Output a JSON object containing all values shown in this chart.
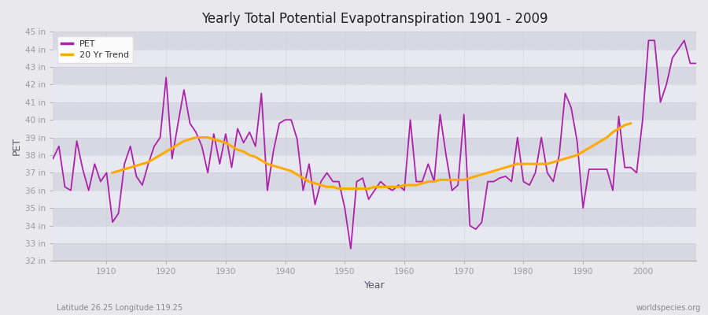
{
  "title": "Yearly Total Potential Evapotranspiration 1901 - 2009",
  "xlabel": "Year",
  "ylabel": "PET",
  "footnote_left": "Latitude 26.25 Longitude 119.25",
  "footnote_right": "worldspecies.org",
  "pet_color": "#aa22aa",
  "trend_color": "#ffaa00",
  "background_color": "#e8e8ed",
  "band_color_light": "#e0e0e8",
  "band_color_dark": "#d0d0da",
  "grid_color": "#bbbbcc",
  "ylim": [
    32,
    45
  ],
  "yticks": [
    32,
    33,
    34,
    35,
    36,
    37,
    38,
    39,
    40,
    41,
    42,
    43,
    44,
    45
  ],
  "ytick_labels": [
    "32 in",
    "33 in",
    "34 in",
    "35 in",
    "36 in",
    "37 in",
    "38 in",
    "39 in",
    "40 in",
    "41 in",
    "42 in",
    "43 in",
    "44 in",
    "45 in"
  ],
  "xlim": [
    1901,
    2009
  ],
  "xticks": [
    1910,
    1920,
    1930,
    1940,
    1950,
    1960,
    1970,
    1980,
    1990,
    2000
  ],
  "years": [
    1901,
    1902,
    1903,
    1904,
    1905,
    1906,
    1907,
    1908,
    1909,
    1910,
    1911,
    1912,
    1913,
    1914,
    1915,
    1916,
    1917,
    1918,
    1919,
    1920,
    1921,
    1922,
    1923,
    1924,
    1925,
    1926,
    1927,
    1928,
    1929,
    1930,
    1931,
    1932,
    1933,
    1934,
    1935,
    1936,
    1937,
    1938,
    1939,
    1940,
    1941,
    1942,
    1943,
    1944,
    1945,
    1946,
    1947,
    1948,
    1949,
    1950,
    1951,
    1952,
    1953,
    1954,
    1955,
    1956,
    1957,
    1958,
    1959,
    1960,
    1961,
    1962,
    1963,
    1964,
    1965,
    1966,
    1967,
    1968,
    1969,
    1970,
    1971,
    1972,
    1973,
    1974,
    1975,
    1976,
    1977,
    1978,
    1979,
    1980,
    1981,
    1982,
    1983,
    1984,
    1985,
    1986,
    1987,
    1988,
    1989,
    1990,
    1991,
    1992,
    1993,
    1994,
    1995,
    1996,
    1997,
    1998,
    1999,
    2000,
    2001,
    2002,
    2003,
    2004,
    2005,
    2006,
    2007,
    2008,
    2009
  ],
  "pet": [
    37.8,
    38.5,
    36.2,
    36.0,
    38.8,
    37.2,
    36.0,
    37.5,
    36.5,
    37.0,
    34.2,
    34.7,
    37.5,
    38.5,
    36.8,
    36.3,
    37.5,
    38.5,
    39.0,
    42.4,
    37.8,
    39.8,
    41.7,
    39.8,
    39.3,
    38.5,
    37.0,
    39.2,
    37.5,
    39.2,
    37.3,
    39.5,
    38.7,
    39.3,
    38.5,
    41.5,
    36.0,
    38.2,
    39.8,
    40.0,
    40.0,
    38.9,
    36.0,
    37.5,
    35.2,
    36.5,
    37.0,
    36.5,
    36.5,
    35.0,
    32.7,
    36.5,
    36.7,
    35.5,
    36.0,
    36.5,
    36.2,
    36.0,
    36.3,
    36.0,
    40.0,
    36.5,
    36.5,
    37.5,
    36.5,
    40.3,
    38.0,
    36.0,
    36.3,
    40.3,
    34.0,
    33.8,
    34.2,
    36.5,
    36.5,
    36.7,
    36.8,
    36.5,
    39.0,
    36.5,
    36.3,
    37.0,
    39.0,
    37.0,
    36.5,
    38.0,
    41.5,
    40.7,
    38.8,
    35.0,
    37.2,
    37.2,
    37.2,
    37.2,
    36.0,
    40.2,
    37.3,
    37.3,
    37.0,
    40.0,
    44.5,
    44.5,
    41.0,
    42.0,
    43.5,
    44.0,
    44.5,
    43.2,
    43.2
  ],
  "trend": [
    null,
    null,
    null,
    null,
    null,
    null,
    null,
    null,
    null,
    null,
    37.0,
    37.1,
    37.2,
    37.3,
    37.4,
    37.5,
    37.6,
    37.8,
    38.0,
    38.2,
    38.4,
    38.6,
    38.8,
    38.9,
    39.0,
    39.0,
    39.0,
    38.9,
    38.8,
    38.7,
    38.5,
    38.3,
    38.2,
    38.0,
    37.9,
    37.7,
    37.5,
    37.4,
    37.3,
    37.2,
    37.1,
    36.9,
    36.7,
    36.5,
    36.4,
    36.3,
    36.2,
    36.2,
    36.1,
    36.1,
    36.1,
    36.1,
    36.1,
    36.1,
    36.2,
    36.2,
    36.2,
    36.2,
    36.2,
    36.3,
    36.3,
    36.3,
    36.4,
    36.5,
    36.5,
    36.6,
    36.6,
    36.6,
    36.6,
    36.6,
    36.7,
    36.8,
    36.9,
    37.0,
    37.1,
    37.2,
    37.3,
    37.4,
    37.5,
    37.5,
    37.5,
    37.5,
    37.5,
    37.5,
    37.6,
    37.7,
    37.8,
    37.9,
    38.0,
    38.2,
    38.4,
    38.6,
    38.8,
    39.0,
    39.3,
    39.5,
    39.7,
    39.8,
    null,
    null,
    null,
    null,
    null,
    null,
    null,
    null,
    null,
    null
  ]
}
